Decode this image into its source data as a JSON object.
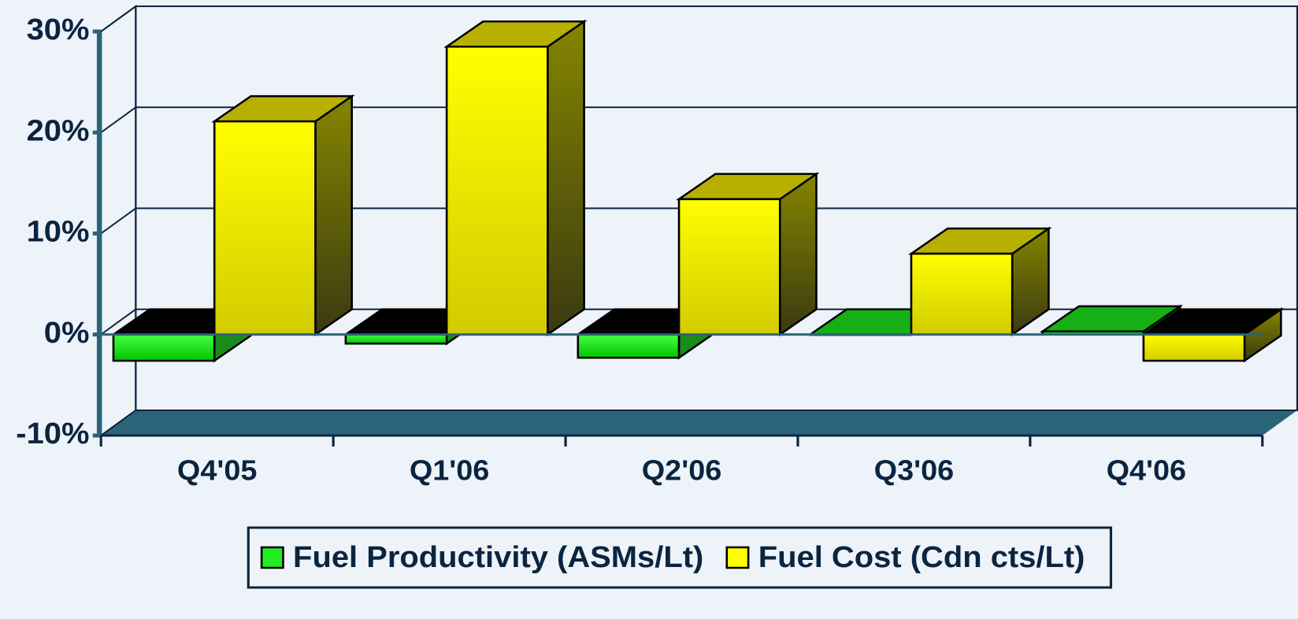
{
  "chart_data": {
    "type": "bar3d",
    "categories": [
      "Q4'05",
      "Q1'06",
      "Q2'06",
      "Q3'06",
      "Q4'06"
    ],
    "series": [
      {
        "name": "Fuel Productivity (ASMs/Lt)",
        "color": "#22ee22",
        "values": [
          -2.6,
          -0.9,
          -2.3,
          0,
          0.3
        ]
      },
      {
        "name": "Fuel Cost (Cdn cts/Lt)",
        "color": "#ffff00",
        "values": [
          21.1,
          28.5,
          13.4,
          8.0,
          -2.6
        ]
      }
    ],
    "ylim": [
      -10,
      30
    ],
    "yticks": [
      {
        "value": -10,
        "label": "-10%"
      },
      {
        "value": 0,
        "label": "0%"
      },
      {
        "value": 10,
        "label": "10%"
      },
      {
        "value": 20,
        "label": "20%"
      },
      {
        "value": 30,
        "label": "30%"
      }
    ],
    "grid": true,
    "legend": "bottom"
  }
}
